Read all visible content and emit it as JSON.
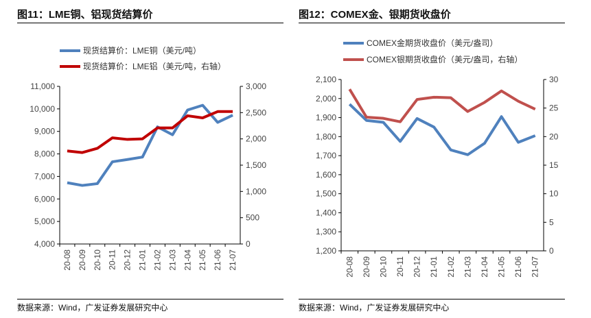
{
  "charts_meta": [
    {
      "title": "图11：LME铜、铝现货结算价",
      "source": "数据来源：Wind，广发证券发展研究中心"
    },
    {
      "title": "图12：COMEX金、银期货收盘价",
      "source": "数据来源：Wind，广发证券发展研究中心"
    }
  ],
  "chart_data": [
    {
      "type": "line",
      "categories": [
        "20-08",
        "20-09",
        "20-10",
        "20-11",
        "20-12",
        "21-01",
        "21-02",
        "21-03",
        "21-04",
        "21-05",
        "21-06",
        "21-07"
      ],
      "ylim": [
        4000,
        11000
      ],
      "y2lim": [
        0,
        3000
      ],
      "yticks": [
        "4,000",
        "5,000",
        "6,000",
        "7,000",
        "8,000",
        "9,000",
        "10,000",
        "11,000"
      ],
      "y2ticks": [
        "0",
        "500",
        "1,000",
        "1,500",
        "2,000",
        "2,500",
        "3,000"
      ],
      "legend": "top",
      "grid": false,
      "series": [
        {
          "name": "现货结算价：LME铜（美元/吨）",
          "axis": "left",
          "color": "#4f81bd",
          "values": [
            6720,
            6600,
            6680,
            7650,
            7750,
            7860,
            9200,
            8850,
            9950,
            10160,
            9400,
            9720
          ]
        },
        {
          "name": "现货结算价：LME铝（美元/吨，右轴）",
          "axis": "right",
          "color": "#c00000",
          "values": [
            1770,
            1740,
            1820,
            2020,
            1990,
            2000,
            2210,
            2210,
            2440,
            2400,
            2520,
            2520
          ]
        }
      ]
    },
    {
      "type": "line",
      "categories": [
        "20-08",
        "20-09",
        "20-10",
        "20-11",
        "20-12",
        "21-01",
        "21-02",
        "21-03",
        "21-04",
        "21-05",
        "21-06",
        "21-07"
      ],
      "ylim": [
        1200,
        2100
      ],
      "y2lim": [
        0,
        30
      ],
      "yticks": [
        "1,200",
        "1,300",
        "1,400",
        "1,500",
        "1,600",
        "1,700",
        "1,800",
        "1,900",
        "2,000",
        "2,100"
      ],
      "y2ticks": [
        "0",
        "5",
        "10",
        "15",
        "20",
        "25",
        "30"
      ],
      "legend": "top",
      "grid": false,
      "series": [
        {
          "name": "COMEX金期货收盘价（美元/盎司）",
          "axis": "left",
          "color": "#4f81bd",
          "values": [
            1970,
            1885,
            1875,
            1775,
            1895,
            1850,
            1730,
            1705,
            1765,
            1905,
            1770,
            1805
          ]
        },
        {
          "name": "COMEX银期货收盘价（美元/盎司，右轴）",
          "axis": "right",
          "color": "#c0504d",
          "values": [
            28.3,
            23.4,
            23.2,
            22.6,
            26.5,
            26.9,
            26.8,
            24.4,
            26.0,
            28.0,
            26.2,
            24.8
          ]
        }
      ]
    }
  ]
}
